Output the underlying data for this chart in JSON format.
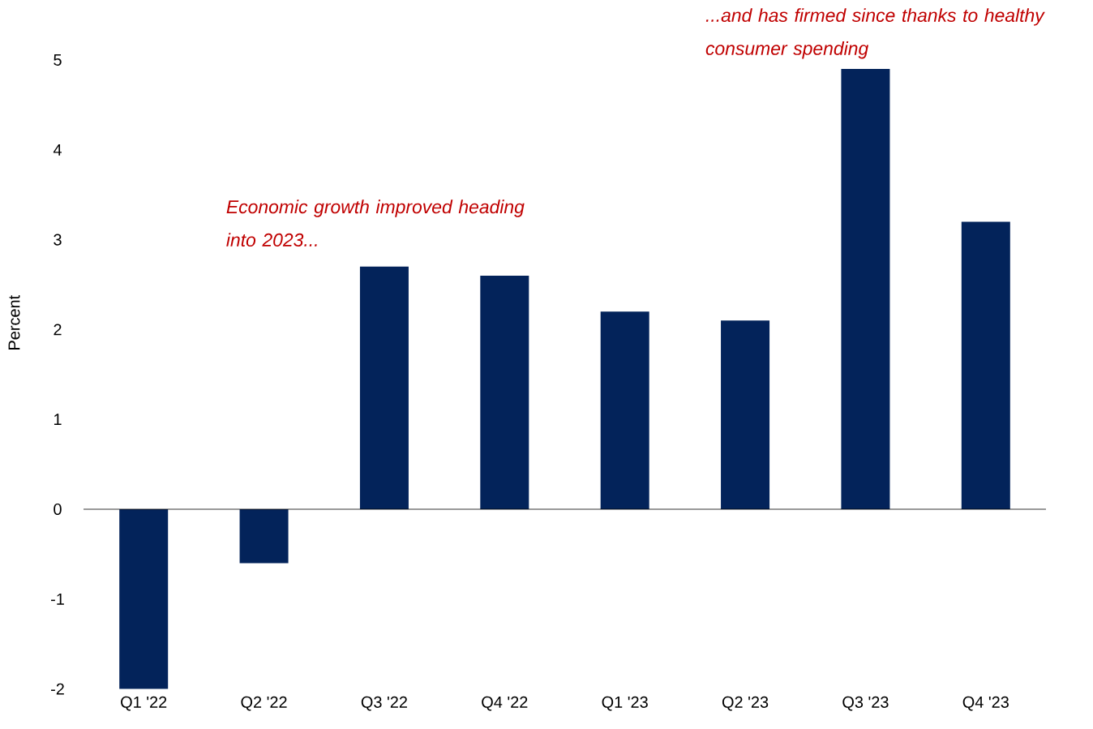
{
  "chart_data": {
    "type": "bar",
    "ylabel": "Percent",
    "categories": [
      "Q1 '22",
      "Q2 '22",
      "Q3 '22",
      "Q4 '22",
      "Q1 '23",
      "Q2 '23",
      "Q3 '23",
      "Q4 '23"
    ],
    "values": [
      -2.0,
      -0.6,
      2.7,
      2.6,
      2.2,
      2.1,
      4.9,
      3.2
    ],
    "color": "#03235a",
    "ylim": [
      -2,
      5
    ],
    "yticks": [
      -2,
      -1,
      0,
      1,
      2,
      3,
      4,
      5
    ],
    "annotations": [
      "Economic growth improved heading into 2023...",
      "...and has firmed since thanks to healthy consumer spending"
    ]
  }
}
